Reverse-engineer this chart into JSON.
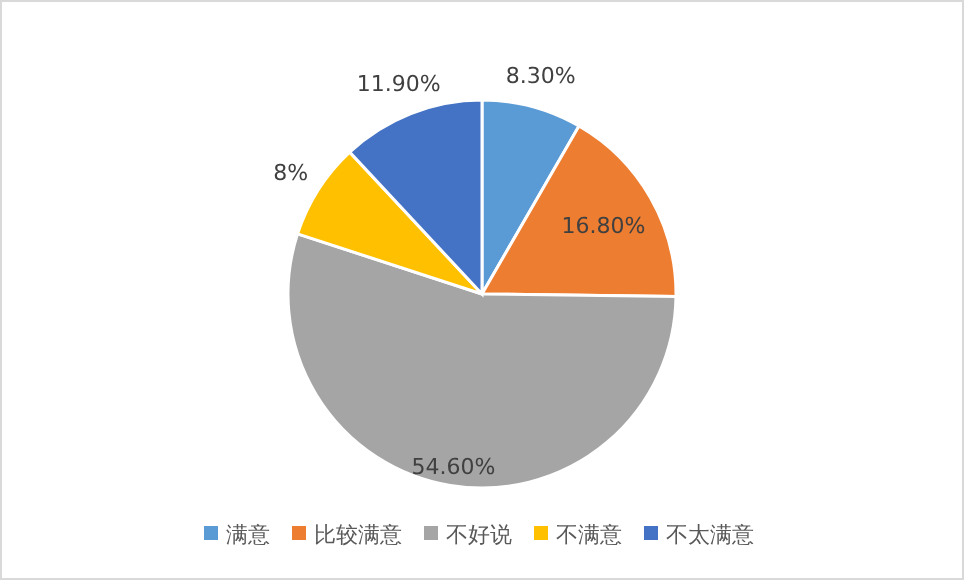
{
  "chart_data": {
    "type": "pie",
    "categories": [
      "满意",
      "比较满意",
      "不好说",
      "不满意",
      "不太满意"
    ],
    "values": [
      8.3,
      16.8,
      54.6,
      8,
      11.9
    ],
    "value_labels": [
      "8.30%",
      "16.80%",
      "54.60%",
      "8%",
      "11.90%"
    ],
    "colors": [
      "#5b9bd5",
      "#ed7d31",
      "#a5a5a5",
      "#ffc000",
      "#4472c4"
    ],
    "legend": "bottom"
  }
}
